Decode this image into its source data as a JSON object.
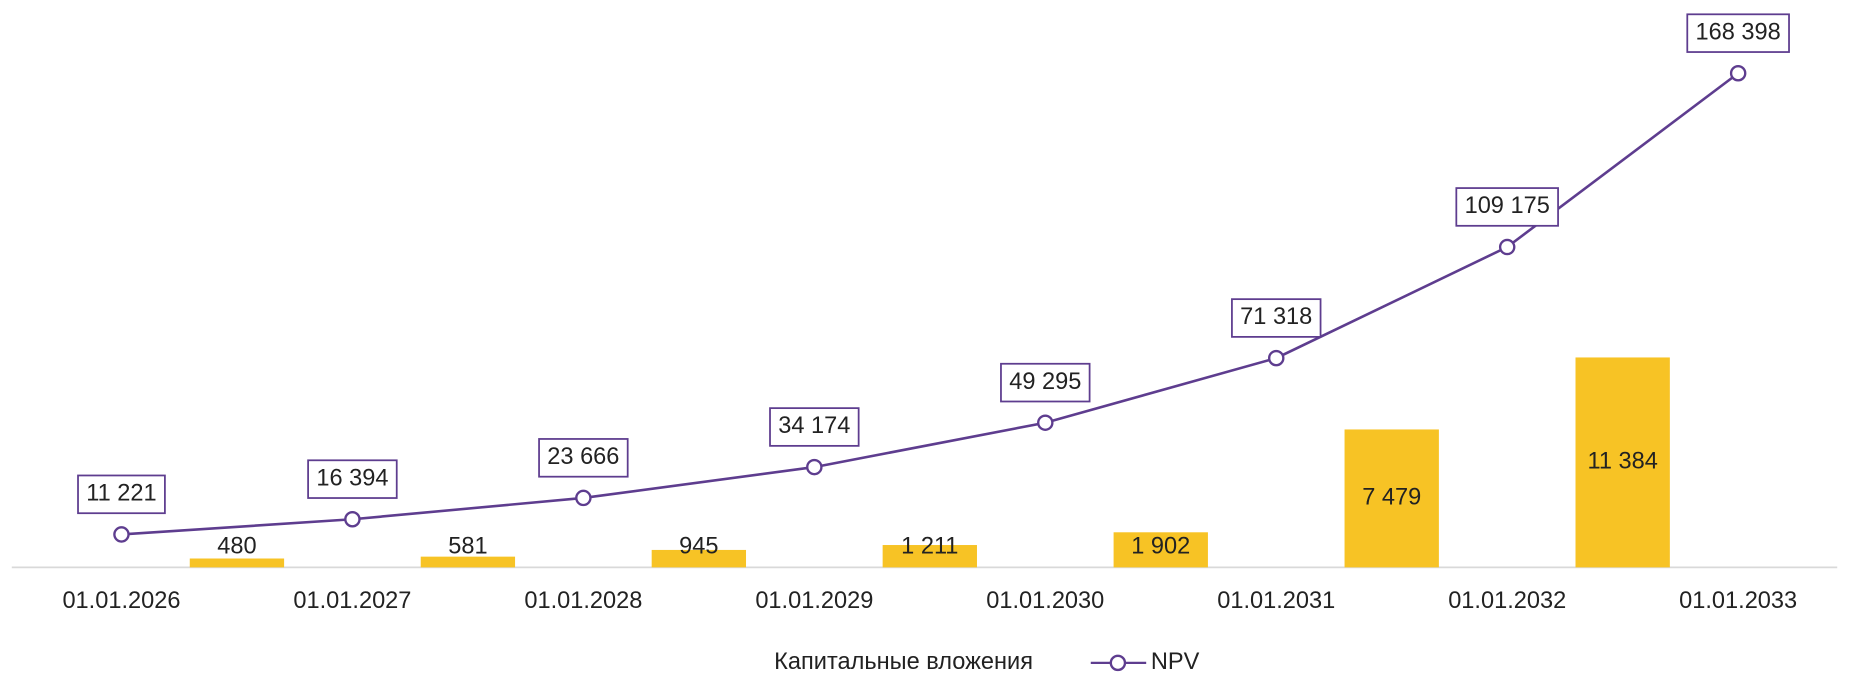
{
  "chart_data": {
    "type": "bar-line",
    "categories": [
      "01.01.2026",
      "01.01.2027",
      "01.01.2028",
      "01.01.2029",
      "01.01.2030",
      "01.01.2031",
      "01.01.2032",
      "01.01.2033"
    ],
    "series": [
      {
        "name": "Капитальные вложения",
        "type": "bar",
        "color": "#f7c325",
        "axis": "y2",
        "values": [
          480,
          581,
          945,
          1211,
          1902,
          7479,
          11384,
          null
        ],
        "value_labels": [
          "480",
          "581",
          "945",
          "1 211",
          "1 902",
          "7 479",
          "11 384",
          null
        ]
      },
      {
        "name": "NPV",
        "type": "line",
        "color": "#5e3d8f",
        "values": [
          11221,
          16394,
          23666,
          34174,
          49295,
          71318,
          109175,
          168398
        ],
        "value_labels": [
          "11 221",
          "16 394",
          "23 666",
          "34 174",
          "49 295",
          "71 318",
          "109 175",
          "168 398"
        ]
      }
    ]
  }
}
